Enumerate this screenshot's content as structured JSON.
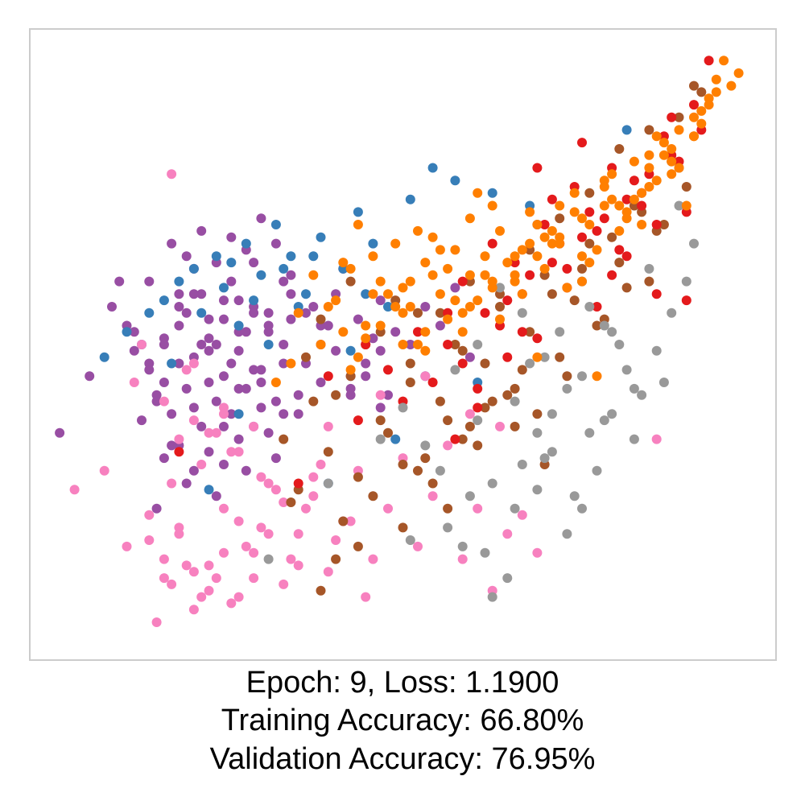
{
  "chart_data": {
    "type": "scatter",
    "title": "",
    "xlabel": "",
    "ylabel": "",
    "axes_ticks": false,
    "grid": false,
    "legend": "none",
    "xlim": [
      0,
      1
    ],
    "ylim": [
      0,
      1
    ],
    "caption_lines": [
      "Epoch: 9, Loss: 1.1900",
      "Training Accuracy: 66.80%",
      "Validation Accuracy: 76.95%"
    ],
    "series": [
      {
        "color": "#984ea3",
        "x": [
          0.04,
          0.08,
          0.11,
          0.13,
          0.14,
          0.15,
          0.16,
          0.17,
          0.18,
          0.19,
          0.2,
          0.21,
          0.22,
          0.23,
          0.24,
          0.25,
          0.26,
          0.27,
          0.28,
          0.29,
          0.3,
          0.31,
          0.32,
          0.33,
          0.34,
          0.35,
          0.36,
          0.37,
          0.38,
          0.39,
          0.4,
          0.41,
          0.42,
          0.43,
          0.44,
          0.45,
          0.46,
          0.47,
          0.48,
          0.12,
          0.14,
          0.16,
          0.18,
          0.2,
          0.22,
          0.24,
          0.26,
          0.28,
          0.3,
          0.32,
          0.34,
          0.19,
          0.21,
          0.23,
          0.25,
          0.27,
          0.29,
          0.31,
          0.33,
          0.17,
          0.19,
          0.21,
          0.23,
          0.25,
          0.27,
          0.29,
          0.31,
          0.35,
          0.37,
          0.39,
          0.41,
          0.43,
          0.45,
          0.47,
          0.49,
          0.51,
          0.53,
          0.55,
          0.57,
          0.59,
          0.18,
          0.2,
          0.22,
          0.24,
          0.26,
          0.28,
          0.3,
          0.32,
          0.34,
          0.36,
          0.16,
          0.18,
          0.2,
          0.22,
          0.24,
          0.26,
          0.28,
          0.3,
          0.32,
          0.34,
          0.17,
          0.21,
          0.25,
          0.29,
          0.33,
          0.23,
          0.27,
          0.31,
          0.35,
          0.39,
          0.43,
          0.47,
          0.2,
          0.22,
          0.24,
          0.26,
          0.28,
          0.3
        ],
        "y": [
          0.36,
          0.45,
          0.56,
          0.53,
          0.49,
          0.38,
          0.6,
          0.42,
          0.51,
          0.34,
          0.47,
          0.55,
          0.4,
          0.58,
          0.44,
          0.5,
          0.37,
          0.6,
          0.43,
          0.52,
          0.63,
          0.46,
          0.55,
          0.41,
          0.5,
          0.58,
          0.39,
          0.47,
          0.56,
          0.44,
          0.53,
          0.49,
          0.62,
          0.43,
          0.54,
          0.45,
          0.51,
          0.57,
          0.42,
          0.6,
          0.52,
          0.47,
          0.44,
          0.58,
          0.62,
          0.49,
          0.54,
          0.57,
          0.46,
          0.52,
          0.6,
          0.66,
          0.64,
          0.68,
          0.63,
          0.67,
          0.65,
          0.7,
          0.66,
          0.41,
          0.39,
          0.43,
          0.37,
          0.41,
          0.39,
          0.43,
          0.4,
          0.61,
          0.55,
          0.53,
          0.58,
          0.45,
          0.47,
          0.49,
          0.52,
          0.5,
          0.56,
          0.53,
          0.59,
          0.48,
          0.32,
          0.34,
          0.3,
          0.33,
          0.31,
          0.35,
          0.37,
          0.36,
          0.39,
          0.42,
          0.46,
          0.5,
          0.53,
          0.48,
          0.51,
          0.45,
          0.49,
          0.56,
          0.53,
          0.47,
          0.24,
          0.28,
          0.26,
          0.3,
          0.32,
          0.5,
          0.47,
          0.44,
          0.54,
          0.5,
          0.42,
          0.4,
          0.56,
          0.58,
          0.54,
          0.57,
          0.52,
          0.55
        ]
      },
      {
        "color": "#377eb8",
        "x": [
          0.1,
          0.13,
          0.16,
          0.18,
          0.2,
          0.22,
          0.25,
          0.27,
          0.29,
          0.31,
          0.33,
          0.35,
          0.37,
          0.39,
          0.42,
          0.44,
          0.46,
          0.48,
          0.51,
          0.54,
          0.57,
          0.62,
          0.68,
          0.74,
          0.8,
          0.15,
          0.19,
          0.23,
          0.26,
          0.28,
          0.3,
          0.32,
          0.34,
          0.36,
          0.38,
          0.43,
          0.45,
          0.4,
          0.24,
          0.28,
          0.49,
          0.53,
          0.6,
          0.67
        ],
        "y": [
          0.48,
          0.52,
          0.55,
          0.57,
          0.6,
          0.62,
          0.64,
          0.63,
          0.66,
          0.61,
          0.69,
          0.64,
          0.58,
          0.67,
          0.62,
          0.71,
          0.66,
          0.56,
          0.73,
          0.78,
          0.76,
          0.74,
          0.69,
          0.6,
          0.84,
          0.5,
          0.47,
          0.55,
          0.59,
          0.53,
          0.57,
          0.5,
          0.62,
          0.56,
          0.64,
          0.49,
          0.58,
          0.28,
          0.27,
          0.39,
          0.35,
          0.45,
          0.44,
          0.72
        ]
      },
      {
        "color": "#f781bf",
        "x": [
          0.06,
          0.1,
          0.13,
          0.16,
          0.18,
          0.2,
          0.22,
          0.24,
          0.26,
          0.28,
          0.3,
          0.32,
          0.34,
          0.36,
          0.38,
          0.4,
          0.42,
          0.44,
          0.46,
          0.48,
          0.5,
          0.52,
          0.54,
          0.56,
          0.58,
          0.6,
          0.62,
          0.64,
          0.66,
          0.68,
          0.17,
          0.19,
          0.21,
          0.23,
          0.25,
          0.27,
          0.29,
          0.31,
          0.33,
          0.35,
          0.37,
          0.39,
          0.41,
          0.43,
          0.45,
          0.2,
          0.22,
          0.24,
          0.26,
          0.28,
          0.3,
          0.16,
          0.18,
          0.2,
          0.22,
          0.24,
          0.26,
          0.28,
          0.3,
          0.32,
          0.34,
          0.36,
          0.38,
          0.14,
          0.18,
          0.22,
          0.26,
          0.19,
          0.23,
          0.27,
          0.31,
          0.4,
          0.47,
          0.53,
          0.59,
          0.63,
          0.84,
          0.19,
          0.25,
          0.15,
          0.21
        ],
        "y": [
          0.27,
          0.3,
          0.18,
          0.23,
          0.13,
          0.2,
          0.08,
          0.15,
          0.24,
          0.1,
          0.17,
          0.28,
          0.12,
          0.2,
          0.26,
          0.14,
          0.22,
          0.3,
          0.16,
          0.24,
          0.32,
          0.18,
          0.26,
          0.34,
          0.16,
          0.24,
          0.11,
          0.2,
          0.23,
          0.17,
          0.06,
          0.12,
          0.15,
          0.1,
          0.13,
          0.09,
          0.18,
          0.21,
          0.27,
          0.16,
          0.24,
          0.31,
          0.19,
          0.22,
          0.1,
          0.35,
          0.38,
          0.36,
          0.4,
          0.33,
          0.37,
          0.19,
          0.16,
          0.21,
          0.14,
          0.11,
          0.17,
          0.22,
          0.13,
          0.2,
          0.25,
          0.15,
          0.29,
          0.44,
          0.41,
          0.47,
          0.39,
          0.28,
          0.31,
          0.33,
          0.29,
          0.37,
          0.42,
          0.45,
          0.39,
          0.37,
          0.35,
          0.77,
          0.36,
          0.5,
          0.46
        ]
      },
      {
        "color": "#a65628",
        "x": [
          0.34,
          0.37,
          0.39,
          0.41,
          0.43,
          0.45,
          0.47,
          0.49,
          0.51,
          0.53,
          0.55,
          0.57,
          0.59,
          0.61,
          0.63,
          0.65,
          0.67,
          0.69,
          0.71,
          0.73,
          0.75,
          0.77,
          0.79,
          0.81,
          0.83,
          0.85,
          0.87,
          0.89,
          0.36,
          0.4,
          0.44,
          0.48,
          0.52,
          0.56,
          0.6,
          0.64,
          0.68,
          0.72,
          0.76,
          0.8,
          0.84,
          0.88,
          0.42,
          0.46,
          0.5,
          0.54,
          0.58,
          0.62,
          0.66,
          0.7,
          0.74,
          0.78,
          0.82,
          0.86,
          0.38,
          0.43,
          0.47,
          0.51,
          0.55,
          0.59,
          0.63,
          0.67,
          0.71,
          0.75,
          0.79,
          0.83,
          0.87,
          0.9,
          0.44,
          0.5,
          0.56,
          0.61,
          0.65,
          0.41,
          0.58,
          0.52,
          0.69,
          0.35,
          0.39
        ],
        "y": [
          0.35,
          0.48,
          0.54,
          0.42,
          0.6,
          0.5,
          0.38,
          0.57,
          0.44,
          0.32,
          0.41,
          0.5,
          0.37,
          0.47,
          0.56,
          0.43,
          0.52,
          0.61,
          0.48,
          0.57,
          0.66,
          0.54,
          0.63,
          0.72,
          0.6,
          0.69,
          0.78,
          0.91,
          0.27,
          0.33,
          0.29,
          0.36,
          0.3,
          0.38,
          0.34,
          0.42,
          0.39,
          0.45,
          0.53,
          0.59,
          0.68,
          0.75,
          0.22,
          0.26,
          0.31,
          0.28,
          0.35,
          0.41,
          0.46,
          0.58,
          0.62,
          0.67,
          0.71,
          0.79,
          0.41,
          0.45,
          0.52,
          0.47,
          0.55,
          0.6,
          0.58,
          0.65,
          0.7,
          0.74,
          0.81,
          0.84,
          0.86,
          0.9,
          0.18,
          0.21,
          0.24,
          0.4,
          0.37,
          0.16,
          0.49,
          0.55,
          0.31,
          0.25,
          0.11
        ]
      },
      {
        "color": "#e41a1c",
        "x": [
          0.36,
          0.4,
          0.44,
          0.48,
          0.52,
          0.56,
          0.6,
          0.64,
          0.68,
          0.72,
          0.76,
          0.8,
          0.84,
          0.88,
          0.91,
          0.54,
          0.58,
          0.62,
          0.66,
          0.7,
          0.74,
          0.78,
          0.82,
          0.86,
          0.9,
          0.56,
          0.61,
          0.65,
          0.69,
          0.73,
          0.77,
          0.81,
          0.85,
          0.89,
          0.63,
          0.67,
          0.71,
          0.75,
          0.79,
          0.83,
          0.87,
          0.5,
          0.58,
          0.64,
          0.7,
          0.76,
          0.82,
          0.6,
          0.66,
          0.72,
          0.78,
          0.84,
          0.57,
          0.68,
          0.74,
          0.8,
          0.86,
          0.2,
          0.88,
          0.45
        ],
        "y": [
          0.28,
          0.45,
          0.38,
          0.46,
          0.52,
          0.55,
          0.4,
          0.48,
          0.51,
          0.62,
          0.56,
          0.64,
          0.58,
          0.71,
          0.95,
          0.44,
          0.6,
          0.66,
          0.58,
          0.73,
          0.67,
          0.78,
          0.72,
          0.8,
          0.84,
          0.5,
          0.55,
          0.63,
          0.69,
          0.75,
          0.7,
          0.76,
          0.83,
          0.88,
          0.53,
          0.61,
          0.66,
          0.71,
          0.65,
          0.77,
          0.79,
          0.41,
          0.47,
          0.57,
          0.63,
          0.68,
          0.74,
          0.43,
          0.52,
          0.59,
          0.61,
          0.69,
          0.35,
          0.78,
          0.82,
          0.73,
          0.86,
          0.33,
          0.57,
          0.5
        ]
      },
      {
        "color": "#999999",
        "x": [
          0.32,
          0.4,
          0.47,
          0.5,
          0.53,
          0.56,
          0.59,
          0.62,
          0.64,
          0.66,
          0.68,
          0.7,
          0.72,
          0.74,
          0.76,
          0.78,
          0.8,
          0.82,
          0.84,
          0.86,
          0.88,
          0.63,
          0.67,
          0.71,
          0.75,
          0.79,
          0.83,
          0.87,
          0.61,
          0.65,
          0.69,
          0.73,
          0.77,
          0.81,
          0.85,
          0.89,
          0.57,
          0.6,
          0.65,
          0.7,
          0.74,
          0.78,
          0.62,
          0.68,
          0.72,
          0.58,
          0.55,
          0.51,
          0.75,
          0.81,
          0.66,
          0.6,
          0.69,
          0.77
        ],
        "y": [
          0.16,
          0.28,
          0.35,
          0.4,
          0.34,
          0.21,
          0.26,
          0.28,
          0.13,
          0.31,
          0.36,
          0.33,
          0.43,
          0.24,
          0.3,
          0.39,
          0.46,
          0.42,
          0.49,
          0.55,
          0.6,
          0.59,
          0.47,
          0.52,
          0.56,
          0.5,
          0.62,
          0.72,
          0.17,
          0.24,
          0.32,
          0.26,
          0.38,
          0.35,
          0.44,
          0.66,
          0.46,
          0.5,
          0.41,
          0.39,
          0.45,
          0.52,
          0.1,
          0.27,
          0.2,
          0.18,
          0.3,
          0.19,
          0.36,
          0.43,
          0.55,
          0.38,
          0.48,
          0.53
        ]
      },
      {
        "color": "#ff7f00",
        "x": [
          0.33,
          0.36,
          0.39,
          0.41,
          0.43,
          0.45,
          0.47,
          0.49,
          0.51,
          0.53,
          0.55,
          0.57,
          0.59,
          0.61,
          0.63,
          0.65,
          0.67,
          0.69,
          0.71,
          0.73,
          0.75,
          0.77,
          0.79,
          0.81,
          0.83,
          0.85,
          0.87,
          0.89,
          0.91,
          0.93,
          0.38,
          0.42,
          0.46,
          0.5,
          0.54,
          0.58,
          0.62,
          0.66,
          0.7,
          0.74,
          0.78,
          0.82,
          0.86,
          0.9,
          0.4,
          0.44,
          0.48,
          0.52,
          0.56,
          0.6,
          0.64,
          0.68,
          0.72,
          0.76,
          0.8,
          0.84,
          0.88,
          0.92,
          0.43,
          0.47,
          0.51,
          0.55,
          0.59,
          0.63,
          0.67,
          0.71,
          0.75,
          0.79,
          0.83,
          0.87,
          0.91,
          0.45,
          0.49,
          0.53,
          0.57,
          0.61,
          0.65,
          0.69,
          0.73,
          0.77,
          0.81,
          0.85,
          0.89,
          0.42,
          0.46,
          0.5,
          0.54,
          0.58,
          0.62,
          0.66,
          0.7,
          0.74,
          0.78,
          0.82,
          0.86,
          0.9,
          0.94,
          0.5,
          0.56,
          0.62,
          0.68,
          0.74,
          0.8,
          0.86,
          0.92,
          0.53,
          0.59,
          0.65,
          0.71,
          0.77,
          0.83,
          0.89,
          0.95,
          0.35,
          0.44,
          0.52,
          0.6,
          0.68,
          0.76,
          0.84
        ],
        "y": [
          0.44,
          0.55,
          0.5,
          0.57,
          0.62,
          0.53,
          0.6,
          0.66,
          0.56,
          0.63,
          0.58,
          0.65,
          0.7,
          0.61,
          0.68,
          0.64,
          0.71,
          0.62,
          0.67,
          0.74,
          0.69,
          0.76,
          0.72,
          0.79,
          0.75,
          0.82,
          0.78,
          0.86,
          0.89,
          0.95,
          0.61,
          0.52,
          0.64,
          0.59,
          0.67,
          0.55,
          0.72,
          0.58,
          0.66,
          0.6,
          0.73,
          0.69,
          0.81,
          0.85,
          0.56,
          0.48,
          0.58,
          0.5,
          0.62,
          0.57,
          0.63,
          0.69,
          0.59,
          0.65,
          0.7,
          0.76,
          0.72,
          0.92,
          0.46,
          0.53,
          0.6,
          0.65,
          0.61,
          0.54,
          0.66,
          0.72,
          0.63,
          0.68,
          0.78,
          0.84,
          0.88,
          0.51,
          0.56,
          0.49,
          0.57,
          0.64,
          0.6,
          0.67,
          0.71,
          0.75,
          0.73,
          0.8,
          0.83,
          0.63,
          0.58,
          0.55,
          0.61,
          0.52,
          0.59,
          0.65,
          0.68,
          0.64,
          0.77,
          0.74,
          0.79,
          0.87,
          0.91,
          0.5,
          0.54,
          0.6,
          0.64,
          0.7,
          0.71,
          0.77,
          0.9,
          0.52,
          0.56,
          0.61,
          0.66,
          0.72,
          0.8,
          0.83,
          0.93,
          0.47,
          0.69,
          0.68,
          0.74,
          0.48,
          0.45,
          0.83
        ]
      }
    ]
  }
}
